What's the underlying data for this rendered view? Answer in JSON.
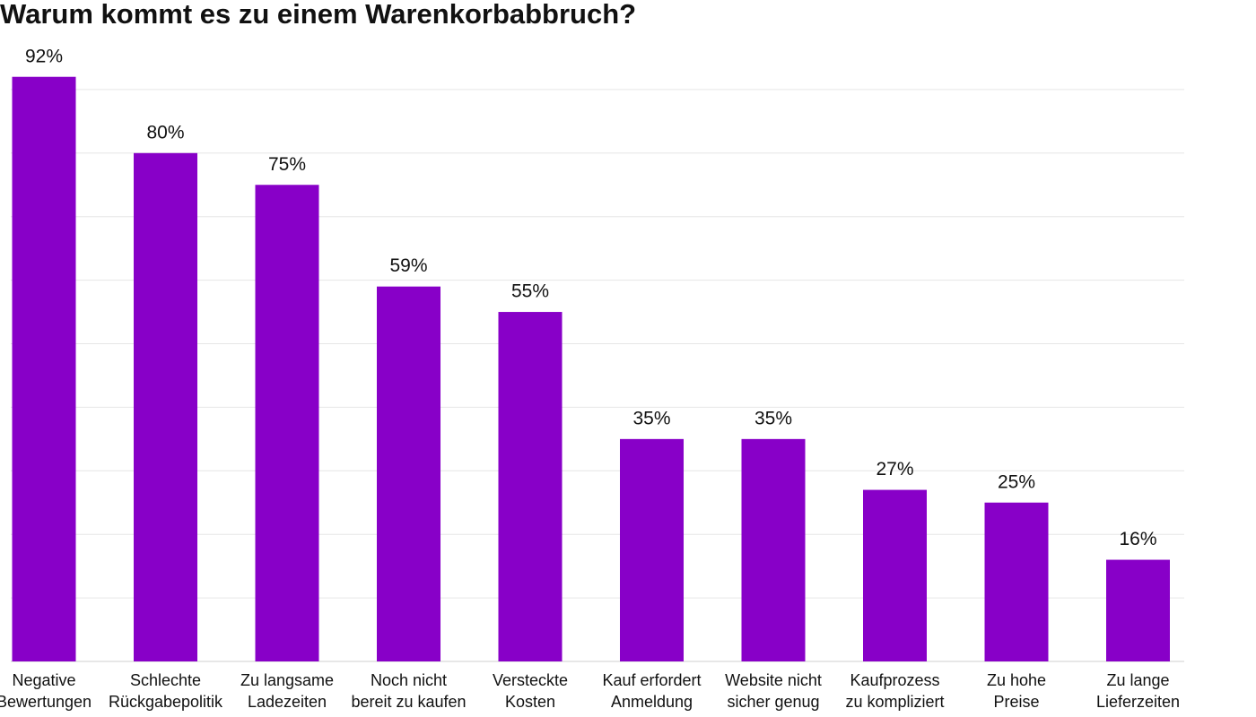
{
  "chart_data": {
    "type": "bar",
    "title": "Warum kommt es zu einem Warenkorbabbruch?",
    "categories": [
      [
        "Negative",
        "Bewertungen"
      ],
      [
        "Schlechte",
        "Rückgabepolitik"
      ],
      [
        "Zu langsame",
        "Ladezeiten"
      ],
      [
        "Noch nicht",
        "bereit zu kaufen"
      ],
      [
        "Versteckte",
        "Kosten"
      ],
      [
        "Kauf erfordert",
        "Anmeldung"
      ],
      [
        "Website nicht",
        "sicher genug"
      ],
      [
        "Kaufprozess",
        "zu kompliziert"
      ],
      [
        "Zu hohe",
        "Preise"
      ],
      [
        "Zu lange",
        "Lieferzeiten"
      ]
    ],
    "values": [
      92,
      80,
      75,
      59,
      55,
      35,
      35,
      27,
      25,
      16
    ],
    "value_labels": [
      "92%",
      "80%",
      "75%",
      "59%",
      "55%",
      "35%",
      "35%",
      "27%",
      "25%",
      "16%"
    ],
    "color": "#8800c8",
    "ylim": [
      0,
      100
    ],
    "yticks": [
      0,
      10,
      20,
      30,
      40,
      50,
      60,
      70,
      80,
      90
    ],
    "grid": true
  }
}
